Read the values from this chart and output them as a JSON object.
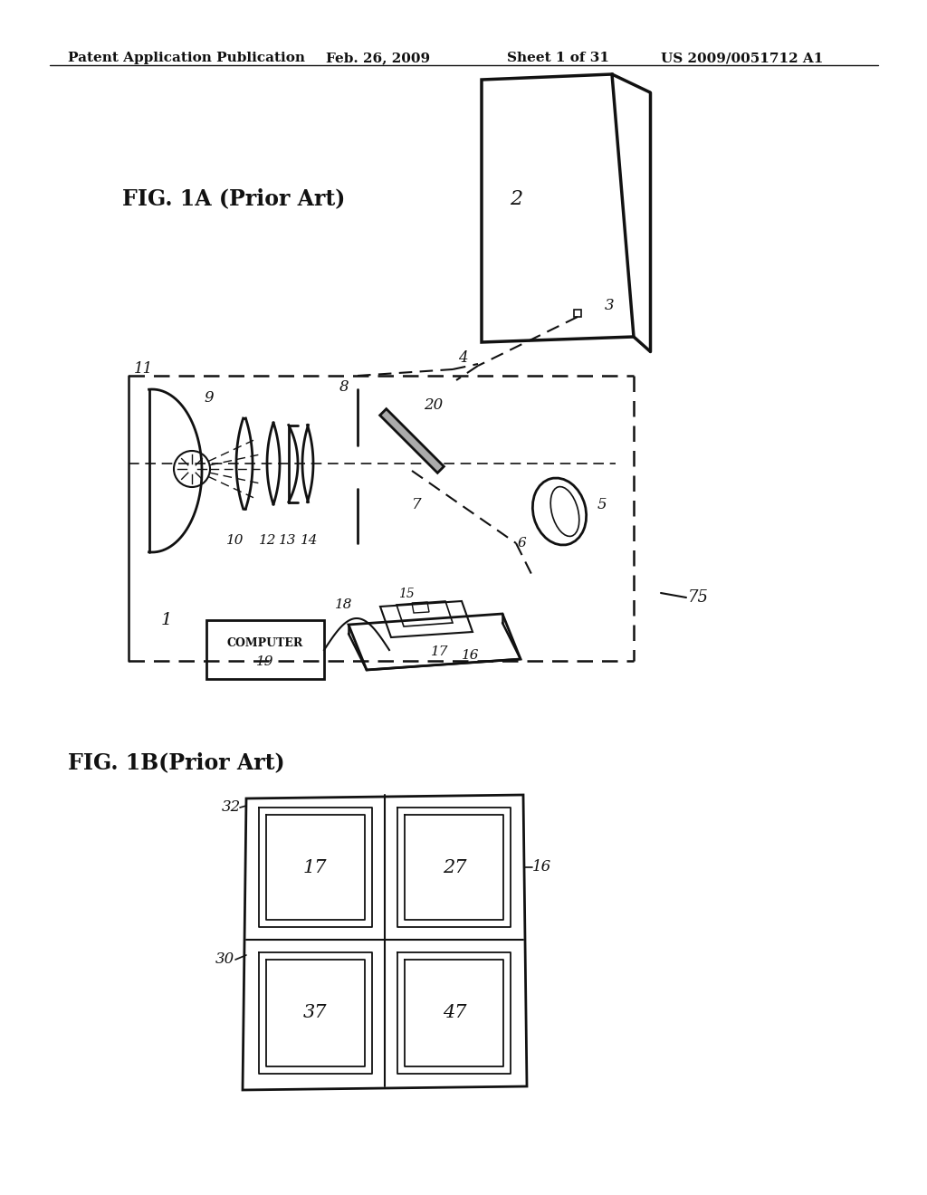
{
  "title": "Patent Application Publication",
  "date": "Feb. 26, 2009",
  "sheet": "Sheet 1 of 31",
  "patent_num": "US 2009/0051712 A1",
  "fig1a_label": "FIG. 1A (Prior Art)",
  "fig1b_label": "FIG. 1B(Prior Art)",
  "bg_color": "#ffffff",
  "line_color": "#111111"
}
